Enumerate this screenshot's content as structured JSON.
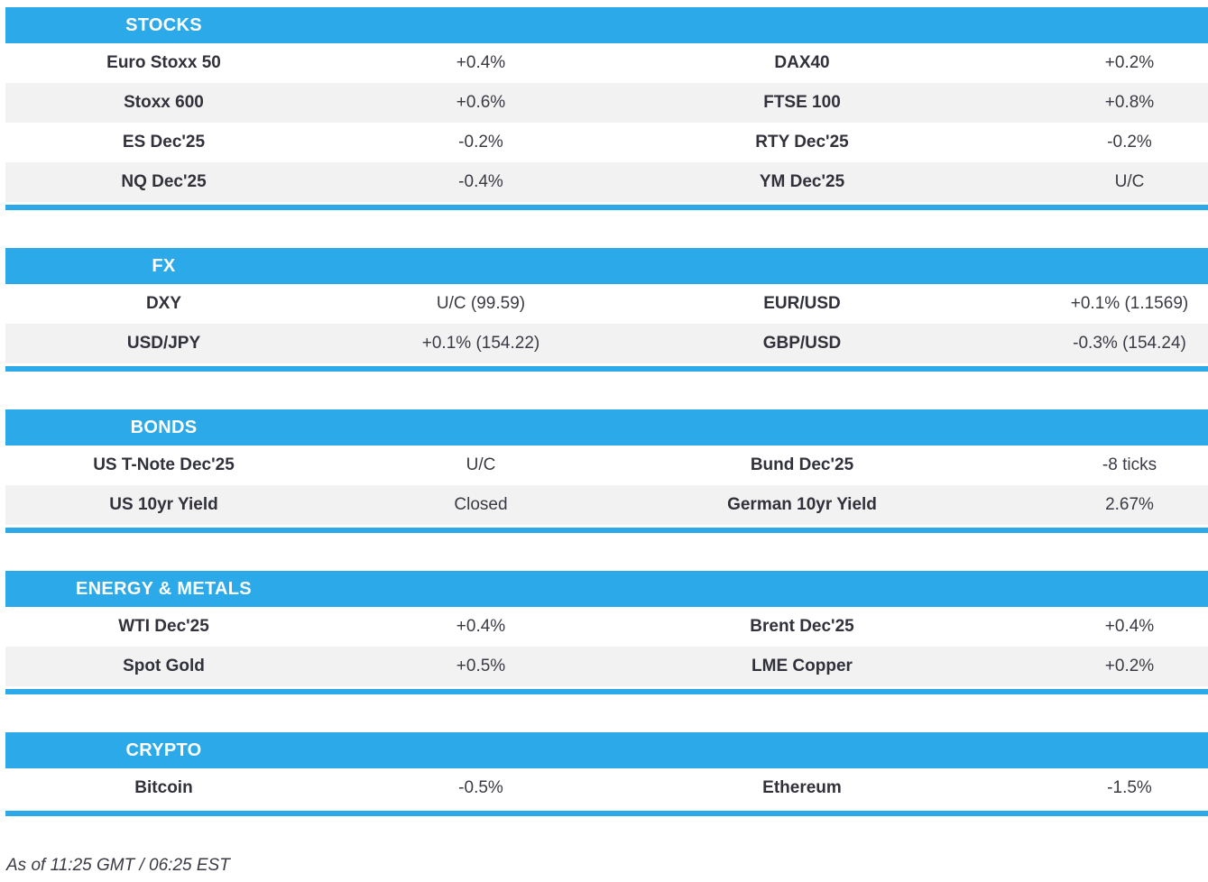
{
  "colors": {
    "accent": "#2CA9E8",
    "stripe": "#F2F2F2",
    "header_text": "#FFFFFF",
    "label_text": "#31313B",
    "value_text": "#3A3A44"
  },
  "sections": [
    {
      "title": "STOCKS",
      "rows": [
        {
          "l1": "Euro Stoxx 50",
          "v1": "+0.4%",
          "l2": "DAX40",
          "v2": "+0.2%"
        },
        {
          "l1": "Stoxx 600",
          "v1": "+0.6%",
          "l2": "FTSE 100",
          "v2": "+0.8%"
        },
        {
          "l1": "ES Dec'25",
          "v1": "-0.2%",
          "l2": "RTY Dec'25",
          "v2": "-0.2%"
        },
        {
          "l1": "NQ Dec'25",
          "v1": "-0.4%",
          "l2": "YM Dec'25",
          "v2": "U/C"
        }
      ]
    },
    {
      "title": "FX",
      "rows": [
        {
          "l1": "DXY",
          "v1": "U/C (99.59)",
          "l2": "EUR/USD",
          "v2": "+0.1% (1.1569)"
        },
        {
          "l1": "USD/JPY",
          "v1": "+0.1% (154.22)",
          "l2": "GBP/USD",
          "v2": "-0.3% (154.24)"
        }
      ]
    },
    {
      "title": "BONDS",
      "rows": [
        {
          "l1": "US T-Note Dec'25",
          "v1": "U/C",
          "l2": "Bund Dec'25",
          "v2": "-8 ticks"
        },
        {
          "l1": "US 10yr Yield",
          "v1": "Closed",
          "l2": "German 10yr Yield",
          "v2": "2.67%"
        }
      ]
    },
    {
      "title": "ENERGY & METALS",
      "rows": [
        {
          "l1": "WTI Dec'25",
          "v1": "+0.4%",
          "l2": "Brent Dec'25",
          "v2": "+0.4%"
        },
        {
          "l1": "Spot Gold",
          "v1": "+0.5%",
          "l2": "LME Copper",
          "v2": "+0.2%"
        }
      ]
    },
    {
      "title": "CRYPTO",
      "rows": [
        {
          "l1": "Bitcoin",
          "v1": "-0.5%",
          "l2": "Ethereum",
          "v2": "-1.5%"
        }
      ]
    }
  ],
  "footer": {
    "as_of": "As of 11:25 GMT / 06:25 EST"
  }
}
